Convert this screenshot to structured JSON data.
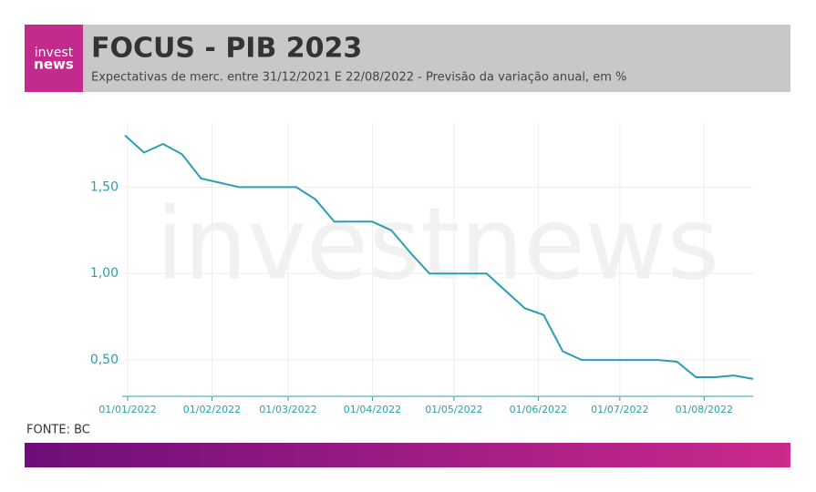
{
  "logo": {
    "line1": "invest",
    "line2": "news"
  },
  "source": "FONTE: BC",
  "chart_data": {
    "type": "line",
    "title": "FOCUS - PIB 2023",
    "subtitle": "Expectativas de merc. entre 31/12/2021 E 22/08/2022 - Previsão da variação anual, em %",
    "watermark": "investnews",
    "x": [
      "2021-12-31",
      "2022-01-07",
      "2022-01-14",
      "2022-01-21",
      "2022-01-28",
      "2022-02-04",
      "2022-02-11",
      "2022-02-18",
      "2022-02-25",
      "2022-03-04",
      "2022-03-11",
      "2022-03-18",
      "2022-03-25",
      "2022-04-01",
      "2022-04-08",
      "2022-04-15",
      "2022-04-22",
      "2022-04-29",
      "2022-05-06",
      "2022-05-13",
      "2022-05-20",
      "2022-05-27",
      "2022-06-03",
      "2022-06-10",
      "2022-06-17",
      "2022-06-24",
      "2022-07-01",
      "2022-07-08",
      "2022-07-15",
      "2022-07-22",
      "2022-07-29",
      "2022-08-05",
      "2022-08-12",
      "2022-08-19"
    ],
    "series": [
      {
        "name": "PIB 2023",
        "color": "#2a9fb0",
        "values": [
          1.8,
          1.7,
          1.75,
          1.69,
          1.55,
          1.525,
          1.5,
          1.5,
          1.5,
          1.5,
          1.43,
          1.3,
          1.3,
          1.3,
          1.25,
          1.12,
          1.0,
          1.0,
          1.0,
          1.0,
          0.9,
          0.8,
          0.76,
          0.55,
          0.5,
          0.5,
          0.5,
          0.5,
          0.5,
          0.49,
          0.4,
          0.4,
          0.41,
          0.39
        ]
      }
    ],
    "xlim": [
      "2021-12-31",
      "2022-08-19"
    ],
    "xticks": [
      {
        "value": "2022-01-01",
        "label": "01/01/2022"
      },
      {
        "value": "2022-02-01",
        "label": "01/02/2022"
      },
      {
        "value": "2022-03-01",
        "label": "01/03/2022"
      },
      {
        "value": "2022-04-01",
        "label": "01/04/2022"
      },
      {
        "value": "2022-05-01",
        "label": "01/05/2022"
      },
      {
        "value": "2022-06-01",
        "label": "01/06/2022"
      },
      {
        "value": "2022-07-01",
        "label": "01/07/2022"
      },
      {
        "value": "2022-08-01",
        "label": "01/08/2022"
      }
    ],
    "ylim": [
      0.3,
      1.85
    ],
    "yticks": [
      {
        "value": 0.5,
        "label": "0,50"
      },
      {
        "value": 1,
        "label": "1,00"
      },
      {
        "value": 1.5,
        "label": "1,50"
      }
    ],
    "grid": true
  }
}
